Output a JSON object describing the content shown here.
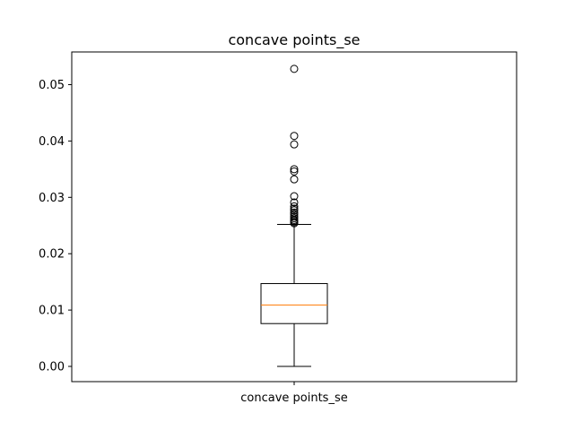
{
  "chart_data": {
    "type": "box",
    "title": "concave points_se",
    "xlabel": "",
    "ylabel": "",
    "categories": [
      "concave points_se"
    ],
    "ylim": [
      -0.0027,
      0.0558
    ],
    "yticks": [
      0.0,
      0.01,
      0.02,
      0.03,
      0.04,
      0.05
    ],
    "ytick_labels": [
      "0.00",
      "0.01",
      "0.02",
      "0.03",
      "0.04",
      "0.05"
    ],
    "grid": false,
    "series": [
      {
        "whisker_low": 0.0,
        "q1": 0.0076,
        "median": 0.0109,
        "q3": 0.0147,
        "whisker_high": 0.0252,
        "outliers": [
          0.0528,
          0.0409,
          0.0394,
          0.035,
          0.0346,
          0.0332,
          0.0302,
          0.0291,
          0.0284,
          0.028,
          0.0277,
          0.0273,
          0.027,
          0.0266,
          0.0263,
          0.026,
          0.0258,
          0.0256,
          0.0254
        ]
      }
    ],
    "colors": {
      "box": "#000000",
      "median": "#ff7f0e",
      "flier": "#000000"
    }
  }
}
